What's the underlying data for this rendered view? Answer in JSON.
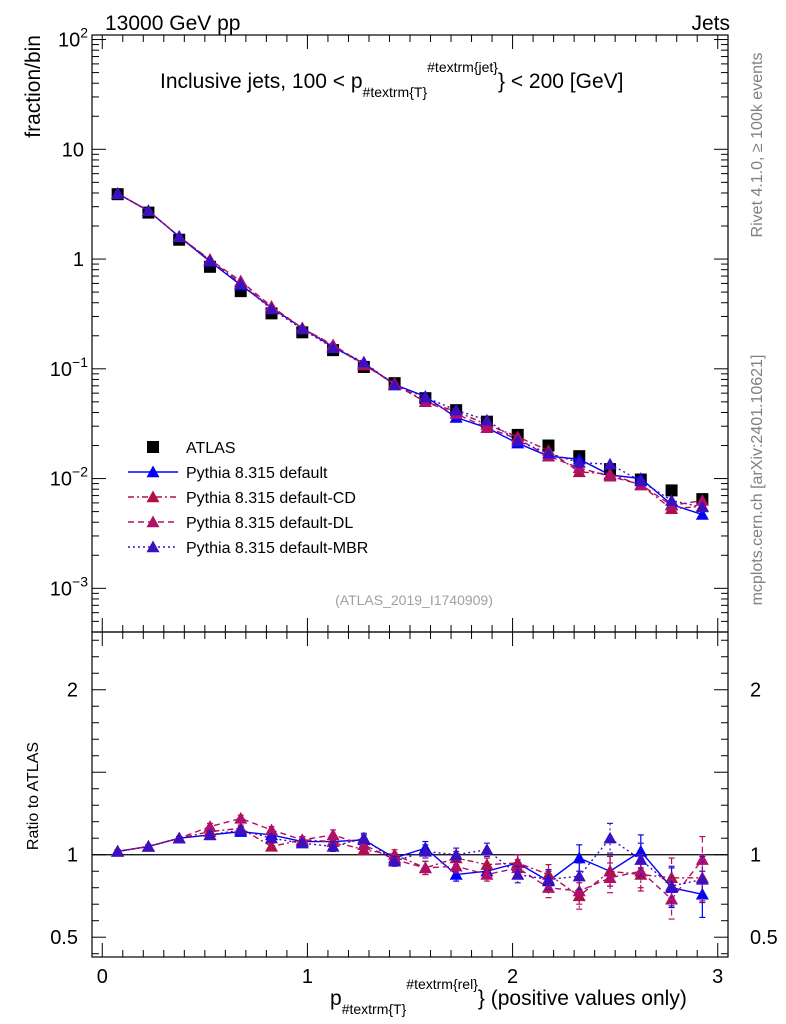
{
  "header": {
    "left": "13000 GeV pp",
    "right": "Jets",
    "side_rivet": "Rivet 4.1.0, ≥ 100k events",
    "side_mcplots": "mcplots.cern.ch [arXiv:2401.10621]",
    "analysis": "(ATLAS_2019_I1740909)"
  },
  "chart_data": [
    {
      "type": "scatter",
      "title": "Inclusive jets, 100 < p_{#textrm{T}}^{#textrm{jet}} < 200 [GeV]",
      "title_parts": {
        "main": "Inclusive jets, 100 < p",
        "sub": "#textrm{T}",
        "sup": "#textrm{jet}",
        "tail": "} < 200 [GeV]"
      },
      "ylabel": "fraction/bin",
      "yscale": "log",
      "ylim": [
        0.0004,
        110
      ],
      "xlim": [
        -0.05,
        3.05
      ],
      "y_ticks": [
        {
          "value": 100,
          "label": "10^2"
        },
        {
          "value": 10,
          "label": "10"
        },
        {
          "value": 1,
          "label": "1"
        },
        {
          "value": 0.1,
          "label": "10^-1"
        },
        {
          "value": 0.01,
          "label": "10^-2"
        },
        {
          "value": 0.001,
          "label": "10^-3"
        }
      ],
      "x": [
        0.075,
        0.225,
        0.375,
        0.525,
        0.675,
        0.825,
        0.975,
        1.125,
        1.275,
        1.425,
        1.575,
        1.725,
        1.875,
        2.025,
        2.175,
        2.325,
        2.475,
        2.625,
        2.775,
        2.925
      ],
      "legend_position": "lower-left",
      "series": [
        {
          "name": "ATLAS",
          "color": "#000000",
          "marker": "square",
          "line": "none",
          "values": [
            3.9,
            2.65,
            1.5,
            0.85,
            0.51,
            0.32,
            0.215,
            0.148,
            0.104,
            0.074,
            0.054,
            0.042,
            0.033,
            0.025,
            0.02,
            0.016,
            0.0122,
            0.0098,
            0.0078,
            0.0065
          ]
        },
        {
          "name": "Pythia 8.315 default",
          "color": "#0000ff",
          "marker": "triangle",
          "line": "solid",
          "values": [
            3.95,
            2.75,
            1.6,
            0.95,
            0.58,
            0.36,
            0.235,
            0.158,
            0.112,
            0.072,
            0.056,
            0.036,
            0.029,
            0.021,
            0.016,
            0.015,
            0.0108,
            0.01,
            0.0058,
            0.0047
          ]
        },
        {
          "name": "Pythia 8.315 default-CD",
          "color": "#b0104a",
          "marker": "triangle",
          "line": "dashdot",
          "values": [
            3.95,
            2.75,
            1.6,
            0.98,
            0.6,
            0.36,
            0.235,
            0.162,
            0.108,
            0.074,
            0.05,
            0.041,
            0.031,
            0.024,
            0.018,
            0.0115,
            0.011,
            0.0087,
            0.0053,
            0.0056
          ]
        },
        {
          "name": "Pythia 8.315 default-DL",
          "color": "#b0106a",
          "marker": "triangle",
          "line": "dashed",
          "values": [
            3.95,
            2.75,
            1.6,
            0.99,
            0.63,
            0.37,
            0.235,
            0.165,
            0.11,
            0.072,
            0.05,
            0.039,
            0.029,
            0.023,
            0.016,
            0.0125,
            0.0105,
            0.0088,
            0.0057,
            0.0063
          ]
        },
        {
          "name": "Pythia 8.315 default-MBR",
          "color": "#3a10c0",
          "marker": "triangle",
          "line": "dotted",
          "values": [
            3.95,
            2.75,
            1.6,
            0.96,
            0.59,
            0.35,
            0.23,
            0.155,
            0.115,
            0.071,
            0.055,
            0.042,
            0.034,
            0.022,
            0.017,
            0.014,
            0.0135,
            0.0095,
            0.0063,
            0.0055
          ]
        }
      ]
    },
    {
      "type": "scatter",
      "ylabel": "Ratio to ATLAS",
      "xlabel": "p_{#textrm{T}}^{#textrm{rel}} (positive values only)",
      "xlabel_parts": {
        "main": "p",
        "sub": "#textrm{T}",
        "sup": "#textrm{rel}",
        "tail": "} (positive values only)"
      },
      "ylim": [
        0.38,
        2.35
      ],
      "xlim": [
        -0.05,
        3.05
      ],
      "reference_line": 1,
      "x_ticks": [
        {
          "value": 0,
          "label": "0"
        },
        {
          "value": 1,
          "label": "1"
        },
        {
          "value": 2,
          "label": "2"
        },
        {
          "value": 3,
          "label": "3"
        }
      ],
      "y_ticks": [
        {
          "value": 2,
          "label": "2"
        },
        {
          "value": 1,
          "label": "1"
        },
        {
          "value": 0.5,
          "label": "0.5"
        }
      ],
      "x": [
        0.075,
        0.225,
        0.375,
        0.525,
        0.675,
        0.825,
        0.975,
        1.125,
        1.275,
        1.425,
        1.575,
        1.725,
        1.875,
        2.025,
        2.175,
        2.325,
        2.475,
        2.625,
        2.775,
        2.925
      ],
      "series": [
        {
          "name": "Pythia 8.315 default",
          "color": "#0000ff",
          "line": "solid",
          "values": [
            1.02,
            1.05,
            1.1,
            1.12,
            1.14,
            1.12,
            1.08,
            1.08,
            1.09,
            0.98,
            1.04,
            0.88,
            0.9,
            0.95,
            0.84,
            0.98,
            0.9,
            1.02,
            0.8,
            0.76
          ],
          "errors": [
            0.01,
            0.01,
            0.01,
            0.02,
            0.02,
            0.02,
            0.02,
            0.03,
            0.03,
            0.03,
            0.04,
            0.04,
            0.04,
            0.05,
            0.06,
            0.08,
            0.09,
            0.1,
            0.12,
            0.14
          ]
        },
        {
          "name": "Pythia 8.315 default-CD",
          "color": "#b0104a",
          "line": "dashdot",
          "values": [
            1.02,
            1.05,
            1.1,
            1.14,
            1.16,
            1.05,
            1.09,
            1.08,
            1.03,
            1.0,
            0.92,
            0.98,
            0.94,
            0.95,
            0.88,
            0.75,
            0.9,
            0.88,
            0.86,
            0.86
          ],
          "errors": [
            0.01,
            0.01,
            0.01,
            0.02,
            0.02,
            0.02,
            0.02,
            0.03,
            0.03,
            0.03,
            0.04,
            0.04,
            0.04,
            0.05,
            0.06,
            0.08,
            0.09,
            0.1,
            0.12,
            0.14
          ]
        },
        {
          "name": "Pythia 8.315 default-DL",
          "color": "#b0106a",
          "line": "dashed",
          "values": [
            1.02,
            1.05,
            1.1,
            1.17,
            1.22,
            1.15,
            1.09,
            1.12,
            1.06,
            0.97,
            0.92,
            0.93,
            0.88,
            0.92,
            0.8,
            0.78,
            0.86,
            0.9,
            0.73,
            0.97
          ],
          "errors": [
            0.01,
            0.01,
            0.01,
            0.02,
            0.02,
            0.02,
            0.02,
            0.03,
            0.03,
            0.03,
            0.04,
            0.04,
            0.04,
            0.05,
            0.06,
            0.08,
            0.09,
            0.1,
            0.12,
            0.14
          ]
        },
        {
          "name": "Pythia 8.315 default-MBR",
          "color": "#3a10c0",
          "line": "dotted",
          "values": [
            1.02,
            1.05,
            1.1,
            1.12,
            1.15,
            1.1,
            1.07,
            1.05,
            1.1,
            0.96,
            1.02,
            1.0,
            1.03,
            0.88,
            0.85,
            0.87,
            1.1,
            0.97,
            0.81,
            0.85
          ],
          "errors": [
            0.01,
            0.01,
            0.01,
            0.02,
            0.02,
            0.02,
            0.02,
            0.03,
            0.03,
            0.03,
            0.04,
            0.04,
            0.04,
            0.05,
            0.06,
            0.08,
            0.09,
            0.1,
            0.12,
            0.14
          ]
        }
      ]
    }
  ]
}
